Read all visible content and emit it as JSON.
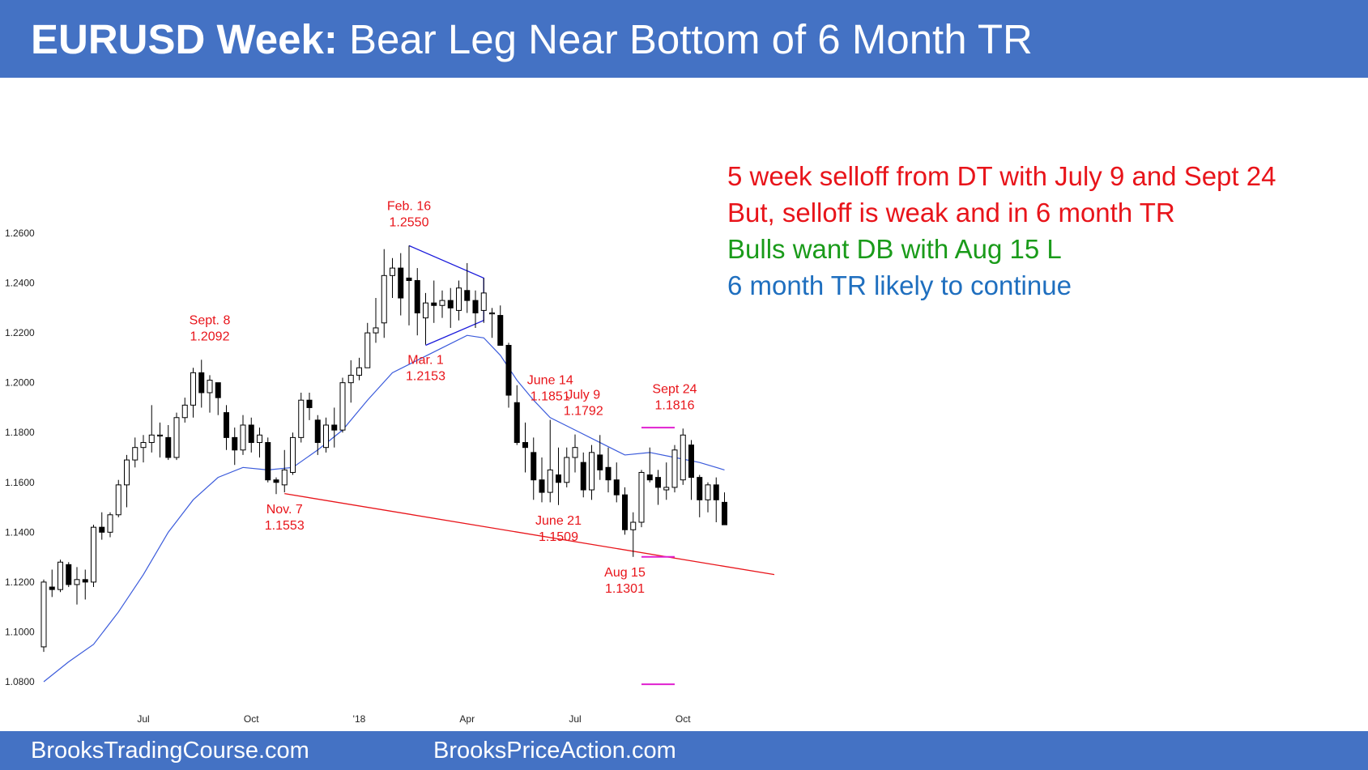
{
  "header": {
    "title_bold": "EURUSD Week:",
    "title_rest": "Bear Leg Near Bottom of 6 Month TR"
  },
  "notes": [
    {
      "text": "5 week selloff from DT with July 9 and Sept 24",
      "color": "#e8141a"
    },
    {
      "text": "But, selloff is weak and in 6 month TR",
      "color": "#e8141a"
    },
    {
      "text": "Bulls want DB with Aug 15 L",
      "color": "#1a9b1a"
    },
    {
      "text": "6 month TR likely to continue",
      "color": "#1f6fbf"
    }
  ],
  "footer": {
    "left": "BrooksTradingCourse.com",
    "right": "BrooksPriceAction.com"
  },
  "chart_data": {
    "type": "candlestick",
    "y_ticks": [
      "1.2600",
      "1.2400",
      "1.2200",
      "1.2000",
      "1.1800",
      "1.1600",
      "1.1400",
      "1.1200",
      "1.1000",
      "1.0800"
    ],
    "ylim": [
      1.075,
      1.27
    ],
    "x_ticks": [
      {
        "label": "Jul",
        "bar": 12
      },
      {
        "label": "Oct",
        "bar": 25
      },
      {
        "label": "'18",
        "bar": 38
      },
      {
        "label": "Apr",
        "bar": 51
      },
      {
        "label": "Jul",
        "bar": 64
      },
      {
        "label": "Oct",
        "bar": 77
      }
    ],
    "annotations": [
      {
        "label": "Sept. 8",
        "value": "1.2092",
        "bar": 20
      },
      {
        "label": "Nov. 7",
        "value": "1.1553",
        "bar": 29
      },
      {
        "label": "Feb. 16",
        "value": "1.2550",
        "bar": 44
      },
      {
        "label": "Mar. 1",
        "value": "1.2153",
        "bar": 46
      },
      {
        "label": "June 14",
        "value": "1.1851",
        "bar": 61
      },
      {
        "label": "June 21",
        "value": "1.1509",
        "bar": 62
      },
      {
        "label": "July 9",
        "value": "1.1792",
        "bar": 65
      },
      {
        "label": "Aug 15",
        "value": "1.1301",
        "bar": 70
      },
      {
        "label": "Sept 24",
        "value": "1.1816",
        "bar": 76
      }
    ],
    "series": [
      {
        "name": "EURUSD weekly",
        "ohlc": [
          [
            1.094,
            1.121,
            1.092,
            1.12
          ],
          [
            1.118,
            1.125,
            1.114,
            1.117
          ],
          [
            1.117,
            1.129,
            1.116,
            1.128
          ],
          [
            1.127,
            1.128,
            1.118,
            1.119
          ],
          [
            1.119,
            1.126,
            1.111,
            1.121
          ],
          [
            1.121,
            1.125,
            1.113,
            1.12
          ],
          [
            1.12,
            1.143,
            1.118,
            1.142
          ],
          [
            1.142,
            1.148,
            1.137,
            1.14
          ],
          [
            1.14,
            1.148,
            1.138,
            1.147
          ],
          [
            1.147,
            1.161,
            1.146,
            1.159
          ],
          [
            1.159,
            1.171,
            1.15,
            1.169
          ],
          [
            1.169,
            1.178,
            1.166,
            1.174
          ],
          [
            1.174,
            1.179,
            1.168,
            1.176
          ],
          [
            1.176,
            1.191,
            1.172,
            1.179
          ],
          [
            1.179,
            1.184,
            1.17,
            1.179
          ],
          [
            1.178,
            1.183,
            1.169,
            1.17
          ],
          [
            1.17,
            1.188,
            1.169,
            1.186
          ],
          [
            1.186,
            1.194,
            1.184,
            1.191
          ],
          [
            1.191,
            1.206,
            1.186,
            1.204
          ],
          [
            1.204,
            1.2092,
            1.19,
            1.196
          ],
          [
            1.196,
            1.203,
            1.188,
            1.201
          ],
          [
            1.2,
            1.2,
            1.187,
            1.194
          ],
          [
            1.188,
            1.191,
            1.173,
            1.178
          ],
          [
            1.178,
            1.182,
            1.167,
            1.173
          ],
          [
            1.173,
            1.187,
            1.171,
            1.183
          ],
          [
            1.183,
            1.186,
            1.172,
            1.176
          ],
          [
            1.176,
            1.182,
            1.17,
            1.179
          ],
          [
            1.176,
            1.178,
            1.16,
            1.161
          ],
          [
            1.161,
            1.162,
            1.1553,
            1.16
          ],
          [
            1.159,
            1.173,
            1.156,
            1.165
          ],
          [
            1.164,
            1.18,
            1.163,
            1.178
          ],
          [
            1.178,
            1.196,
            1.176,
            1.193
          ],
          [
            1.193,
            1.196,
            1.185,
            1.19
          ],
          [
            1.185,
            1.187,
            1.171,
            1.176
          ],
          [
            1.174,
            1.186,
            1.172,
            1.183
          ],
          [
            1.183,
            1.19,
            1.174,
            1.181
          ],
          [
            1.181,
            1.202,
            1.18,
            1.2
          ],
          [
            1.2,
            1.209,
            1.192,
            1.203
          ],
          [
            1.203,
            1.21,
            1.201,
            1.206
          ],
          [
            1.206,
            1.224,
            1.206,
            1.22
          ],
          [
            1.22,
            1.234,
            1.216,
            1.222
          ],
          [
            1.224,
            1.2536,
            1.218,
            1.243
          ],
          [
            1.243,
            1.25,
            1.234,
            1.246
          ],
          [
            1.246,
            1.252,
            1.227,
            1.234
          ],
          [
            1.242,
            1.255,
            1.223,
            1.241
          ],
          [
            1.241,
            1.246,
            1.219,
            1.228
          ],
          [
            1.226,
            1.236,
            1.2153,
            1.232
          ],
          [
            1.232,
            1.241,
            1.224,
            1.231
          ],
          [
            1.231,
            1.237,
            1.226,
            1.233
          ],
          [
            1.233,
            1.238,
            1.222,
            1.23
          ],
          [
            1.229,
            1.241,
            1.225,
            1.238
          ],
          [
            1.237,
            1.248,
            1.228,
            1.233
          ],
          [
            1.233,
            1.237,
            1.222,
            1.228
          ],
          [
            1.229,
            1.242,
            1.224,
            1.236
          ],
          [
            1.228,
            1.23,
            1.218,
            1.228
          ],
          [
            1.227,
            1.231,
            1.215,
            1.215
          ],
          [
            1.215,
            1.216,
            1.19,
            1.195
          ],
          [
            1.192,
            1.199,
            1.175,
            1.176
          ],
          [
            1.176,
            1.184,
            1.164,
            1.174
          ],
          [
            1.172,
            1.178,
            1.153,
            1.161
          ],
          [
            1.161,
            1.17,
            1.152,
            1.156
          ],
          [
            1.156,
            1.1851,
            1.152,
            1.165
          ],
          [
            1.163,
            1.174,
            1.1509,
            1.16
          ],
          [
            1.16,
            1.174,
            1.158,
            1.17
          ],
          [
            1.17,
            1.1792,
            1.164,
            1.174
          ],
          [
            1.168,
            1.172,
            1.154,
            1.157
          ],
          [
            1.157,
            1.175,
            1.153,
            1.172
          ],
          [
            1.171,
            1.179,
            1.161,
            1.165
          ],
          [
            1.166,
            1.174,
            1.156,
            1.161
          ],
          [
            1.161,
            1.168,
            1.152,
            1.155
          ],
          [
            1.155,
            1.158,
            1.139,
            1.141
          ],
          [
            1.141,
            1.148,
            1.1301,
            1.144
          ],
          [
            1.144,
            1.165,
            1.142,
            1.164
          ],
          [
            1.163,
            1.174,
            1.16,
            1.161
          ],
          [
            1.162,
            1.165,
            1.151,
            1.158
          ],
          [
            1.157,
            1.168,
            1.153,
            1.158
          ],
          [
            1.158,
            1.175,
            1.156,
            1.173
          ],
          [
            1.161,
            1.1816,
            1.159,
            1.179
          ],
          [
            1.175,
            1.177,
            1.153,
            1.162
          ],
          [
            1.162,
            1.163,
            1.146,
            1.153
          ],
          [
            1.153,
            1.16,
            1.148,
            1.159
          ],
          [
            1.159,
            1.162,
            1.144,
            1.153
          ],
          [
            1.152,
            1.156,
            1.143,
            1.143
          ]
        ]
      },
      {
        "name": "20-week EMA",
        "points": [
          [
            0,
            1.08
          ],
          [
            3,
            1.088
          ],
          [
            6,
            1.095
          ],
          [
            9,
            1.108
          ],
          [
            12,
            1.123
          ],
          [
            15,
            1.14
          ],
          [
            18,
            1.153
          ],
          [
            21,
            1.162
          ],
          [
            24,
            1.166
          ],
          [
            27,
            1.165
          ],
          [
            30,
            1.166
          ],
          [
            33,
            1.173
          ],
          [
            36,
            1.181
          ],
          [
            39,
            1.193
          ],
          [
            42,
            1.204
          ],
          [
            45,
            1.209
          ],
          [
            48,
            1.214
          ],
          [
            51,
            1.219
          ],
          [
            53,
            1.218
          ],
          [
            55,
            1.211
          ],
          [
            57,
            1.201
          ],
          [
            59,
            1.193
          ],
          [
            61,
            1.186
          ],
          [
            64,
            1.181
          ],
          [
            67,
            1.176
          ],
          [
            70,
            1.171
          ],
          [
            73,
            1.172
          ],
          [
            76,
            1.17
          ],
          [
            79,
            1.168
          ],
          [
            82,
            1.165
          ]
        ]
      }
    ],
    "drawings": [
      {
        "type": "trendline",
        "color": "#e8141a",
        "from": [
          29,
          1.1555
        ],
        "to": [
          88,
          1.123
        ]
      },
      {
        "type": "triangle",
        "color": "#1a1adb",
        "points": [
          [
            44,
            1.255
          ],
          [
            53,
            1.242
          ],
          [
            53,
            1.225
          ],
          [
            46,
            1.215
          ]
        ]
      },
      {
        "type": "hline",
        "color": "#e020d0",
        "from": [
          72,
          1.182
        ],
        "to": [
          76,
          1.182
        ]
      },
      {
        "type": "hline",
        "color": "#e020d0",
        "from": [
          72,
          1.1301
        ],
        "to": [
          76,
          1.1301
        ]
      },
      {
        "type": "hline",
        "color": "#e020d0",
        "from": [
          72,
          1.079
        ],
        "to": [
          76,
          1.079
        ]
      }
    ]
  }
}
